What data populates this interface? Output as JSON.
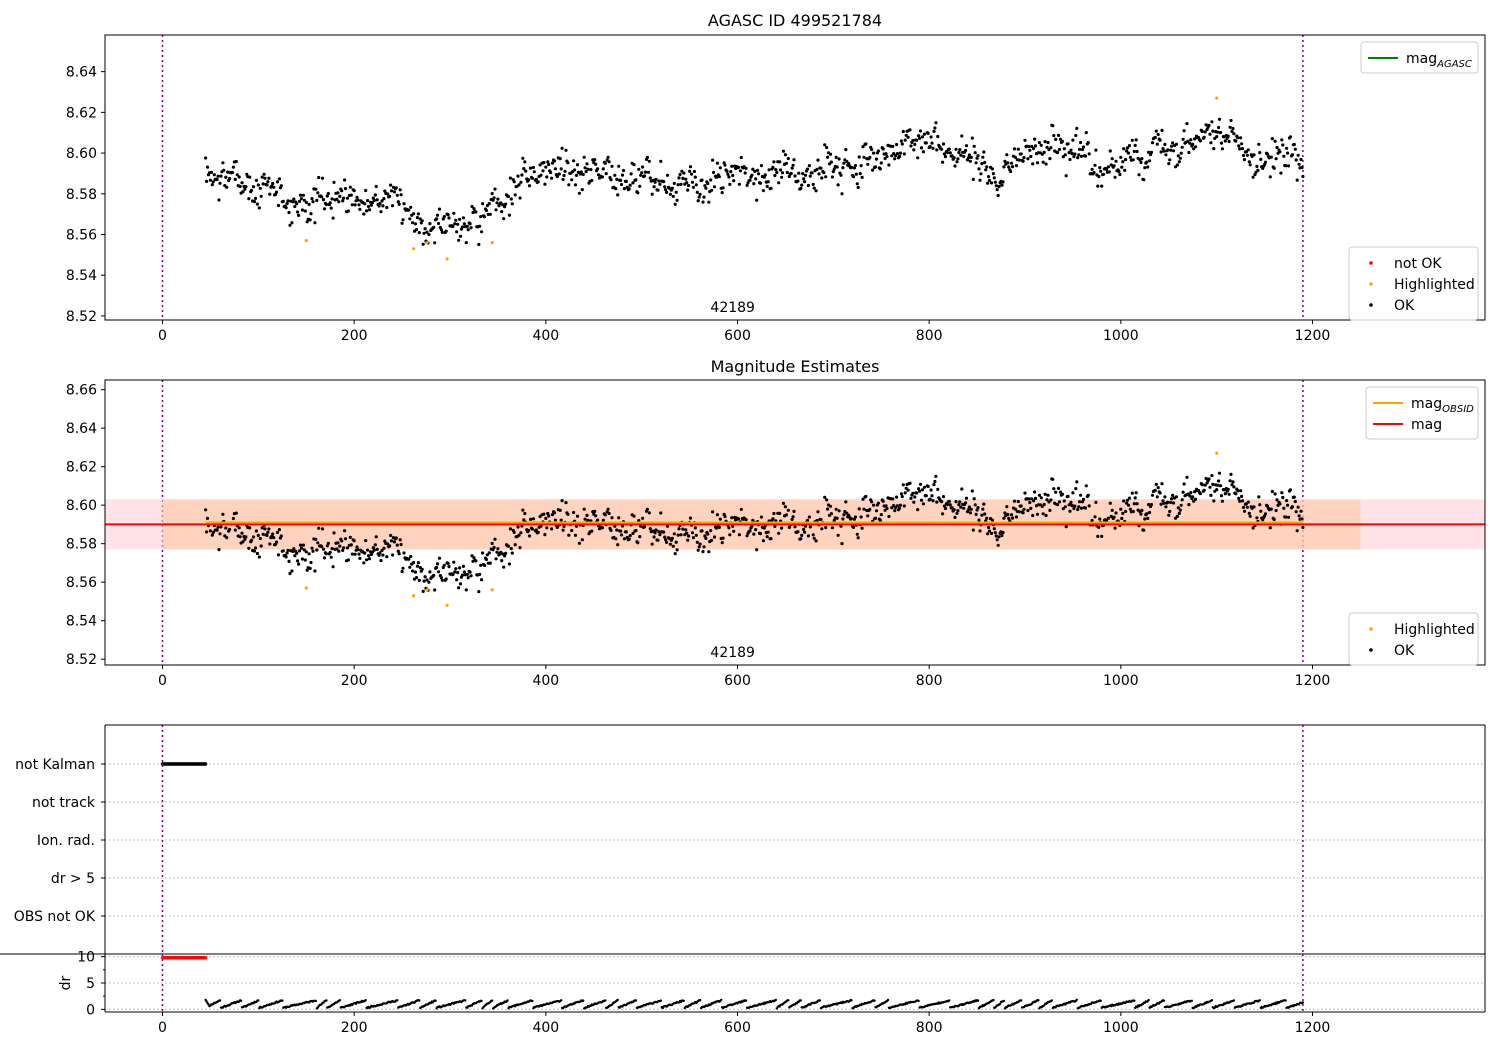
{
  "chart_data": [
    {
      "type": "scatter",
      "title": "AGASC ID 499521784",
      "xlim": [
        -60,
        1380
      ],
      "ylim": [
        8.518,
        8.658
      ],
      "xticks": [
        0,
        200,
        400,
        600,
        800,
        1000,
        1200
      ],
      "yticks": [
        8.52,
        8.54,
        8.56,
        8.58,
        8.6,
        8.62,
        8.64
      ],
      "obsid_label": "42189",
      "obsid_label_x": 595,
      "vlines": [
        0,
        1190
      ],
      "vline_color": "#800080",
      "legend_upper": {
        "position": "top-right",
        "entries": [
          {
            "label": "mag",
            "subscript": "AGASC",
            "color": "#008000",
            "kind": "line"
          }
        ]
      },
      "legend_lower": {
        "position": "bottom-right",
        "entries": [
          {
            "label": "not OK",
            "color": "#ff0000",
            "kind": "dot"
          },
          {
            "label": "Highlighted",
            "color": "#ffa500",
            "kind": "dot"
          },
          {
            "label": "OK",
            "color": "#000000",
            "kind": "dot"
          }
        ]
      },
      "series": [
        {
          "name": "OK",
          "color": "#000000",
          "generator": {
            "x_start": 45,
            "x_end": 1190,
            "step": 1.0,
            "seed": 7
          }
        },
        {
          "name": "Highlighted",
          "color": "#ffa500",
          "x": [
            150,
            262,
            276,
            297,
            344,
            1100
          ],
          "y": [
            8.557,
            8.553,
            8.556,
            8.548,
            8.556,
            8.627
          ]
        }
      ],
      "trend": [
        [
          45,
          8.592
        ],
        [
          80,
          8.587
        ],
        [
          150,
          8.575
        ],
        [
          200,
          8.579
        ],
        [
          240,
          8.576
        ],
        [
          265,
          8.567
        ],
        [
          300,
          8.565
        ],
        [
          340,
          8.571
        ],
        [
          370,
          8.585
        ],
        [
          420,
          8.593
        ],
        [
          500,
          8.588
        ],
        [
          560,
          8.583
        ],
        [
          600,
          8.59
        ],
        [
          650,
          8.588
        ],
        [
          700,
          8.592
        ],
        [
          750,
          8.598
        ],
        [
          800,
          8.603
        ],
        [
          840,
          8.598
        ],
        [
          870,
          8.584
        ],
        [
          900,
          8.601
        ],
        [
          940,
          8.604
        ],
        [
          980,
          8.592
        ],
        [
          1020,
          8.6
        ],
        [
          1060,
          8.601
        ],
        [
          1100,
          8.608
        ],
        [
          1140,
          8.598
        ],
        [
          1190,
          8.595
        ]
      ]
    },
    {
      "type": "scatter",
      "title": "Magnitude Estimates",
      "xlim": [
        -60,
        1380
      ],
      "ylim": [
        8.517,
        8.665
      ],
      "xticks": [
        0,
        200,
        400,
        600,
        800,
        1000,
        1200
      ],
      "yticks": [
        8.52,
        8.54,
        8.56,
        8.58,
        8.6,
        8.62,
        8.64,
        8.66
      ],
      "obsid_label": "42189",
      "obsid_label_x": 595,
      "vlines": [
        0,
        1190
      ],
      "mag_line": {
        "y": 8.59,
        "color": "#ff0000",
        "band": [
          8.577,
          8.603
        ],
        "band_color": "#ffc0cb"
      },
      "mag_obsid_line": {
        "y": 8.591,
        "x": [
          45,
          1190
        ],
        "color": "#ffa500",
        "band": [
          8.577,
          8.603
        ],
        "band_x": [
          0,
          1250
        ],
        "band_color": "#ffc8a0"
      },
      "legend_upper": {
        "position": "top-right",
        "entries": [
          {
            "label": "mag",
            "subscript": "OBSID",
            "color": "#ffa500",
            "kind": "line"
          },
          {
            "label": "mag",
            "subscript": "",
            "color": "#ff0000",
            "kind": "line"
          }
        ]
      },
      "legend_lower": {
        "position": "bottom-right",
        "entries": [
          {
            "label": "Highlighted",
            "color": "#ffa500",
            "kind": "dot"
          },
          {
            "label": "OK",
            "color": "#000000",
            "kind": "dot"
          }
        ]
      },
      "series": [
        {
          "name": "OK",
          "color": "#000000",
          "generator": {
            "x_start": 45,
            "x_end": 1190,
            "step": 1.0,
            "seed": 7
          }
        },
        {
          "name": "Highlighted",
          "color": "#ffa500",
          "x": [
            150,
            262,
            276,
            297,
            344,
            1100
          ],
          "y": [
            8.557,
            8.553,
            8.556,
            8.548,
            8.556,
            8.627
          ]
        }
      ]
    },
    {
      "type": "scatter",
      "title": "",
      "xlim": [
        -60,
        1380
      ],
      "categories": [
        "not Kalman",
        "not track",
        "Ion. rad.",
        "dr > 5",
        "OBS not OK"
      ],
      "flags": [
        {
          "category": "not Kalman",
          "x_range": [
            0,
            45
          ],
          "color": "#000000"
        }
      ]
    },
    {
      "type": "scatter",
      "title": "",
      "ylabel": "dr",
      "xlim": [
        -60,
        1380
      ],
      "ylim": [
        -0.5,
        10.5
      ],
      "yticks": [
        0,
        5,
        10
      ],
      "xticks": [
        0,
        200,
        400,
        600,
        800,
        1000,
        1200
      ],
      "series": [
        {
          "name": "not Kalman",
          "color": "#ff0000",
          "x_range": [
            0,
            45
          ],
          "y": 9.8
        },
        {
          "name": "dr",
          "color": "#000000",
          "x_range": [
            45,
            1190
          ],
          "typical": [
            0,
            1.8
          ]
        }
      ]
    }
  ]
}
